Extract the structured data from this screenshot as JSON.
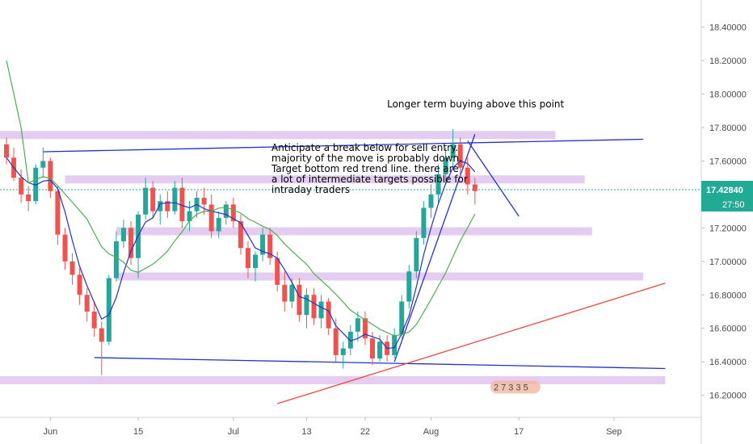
{
  "chart_data": {
    "type": "candlestick",
    "ylim": [
      16.15,
      18.48
    ],
    "x_ticks": [
      {
        "label": "Jun",
        "bar": 6
      },
      {
        "label": "15",
        "bar": 18
      },
      {
        "label": "Jul",
        "bar": 31
      },
      {
        "label": "13",
        "bar": 41
      },
      {
        "label": "22",
        "bar": 49
      },
      {
        "label": "Aug",
        "bar": 58
      },
      {
        "label": "17",
        "bar": 70
      },
      {
        "label": "Sep",
        "bar": 83
      }
    ],
    "y_ticks": [
      "18.40000",
      "18.20000",
      "18.00000",
      "17.80000",
      "17.60000",
      "17.40000",
      "17.20000",
      "17.00000",
      "16.80000",
      "16.60000",
      "16.40000",
      "16.20000"
    ],
    "y_tick_values": [
      18.4,
      18.2,
      18.0,
      17.8,
      17.6,
      17.4,
      17.2,
      17.0,
      16.8,
      16.6,
      16.4,
      16.2
    ],
    "ohlc": [
      [
        17.7,
        17.74,
        17.58,
        17.62
      ],
      [
        17.62,
        17.68,
        17.48,
        17.5
      ],
      [
        17.5,
        17.55,
        17.35,
        17.4
      ],
      [
        17.4,
        17.45,
        17.3,
        17.36
      ],
      [
        17.36,
        17.58,
        17.34,
        17.56
      ],
      [
        17.56,
        17.68,
        17.5,
        17.6
      ],
      [
        17.6,
        17.62,
        17.38,
        17.42
      ],
      [
        17.42,
        17.45,
        17.1,
        17.16
      ],
      [
        17.16,
        17.2,
        16.95,
        17.0
      ],
      [
        17.0,
        17.05,
        16.86,
        16.92
      ],
      [
        16.92,
        16.96,
        16.74,
        16.8
      ],
      [
        16.8,
        16.84,
        16.64,
        16.7
      ],
      [
        16.7,
        16.76,
        16.55,
        16.6
      ],
      [
        16.6,
        16.64,
        16.32,
        16.52
      ],
      [
        16.52,
        16.92,
        16.5,
        16.9
      ],
      [
        16.9,
        17.18,
        16.88,
        17.12
      ],
      [
        17.12,
        17.25,
        17.08,
        17.2
      ],
      [
        17.2,
        17.24,
        16.98,
        17.02
      ],
      [
        17.02,
        17.3,
        16.9,
        17.28
      ],
      [
        17.28,
        17.5,
        17.25,
        17.44
      ],
      [
        17.44,
        17.48,
        17.26,
        17.3
      ],
      [
        17.3,
        17.4,
        17.22,
        17.36
      ],
      [
        17.36,
        17.42,
        17.26,
        17.3
      ],
      [
        17.3,
        17.48,
        17.28,
        17.44
      ],
      [
        17.44,
        17.5,
        17.2,
        17.24
      ],
      [
        17.24,
        17.36,
        17.18,
        17.3
      ],
      [
        17.3,
        17.42,
        17.26,
        17.38
      ],
      [
        17.38,
        17.44,
        17.28,
        17.34
      ],
      [
        17.34,
        17.4,
        17.14,
        17.18
      ],
      [
        17.18,
        17.3,
        17.14,
        17.26
      ],
      [
        17.26,
        17.36,
        17.22,
        17.34
      ],
      [
        17.34,
        17.38,
        17.2,
        17.24
      ],
      [
        17.24,
        17.28,
        17.04,
        17.08
      ],
      [
        17.08,
        17.12,
        16.9,
        16.96
      ],
      [
        16.96,
        17.06,
        16.88,
        17.04
      ],
      [
        17.04,
        17.2,
        17.0,
        17.16
      ],
      [
        17.16,
        17.2,
        16.98,
        17.02
      ],
      [
        17.02,
        17.06,
        16.82,
        16.86
      ],
      [
        16.86,
        16.94,
        16.7,
        16.76
      ],
      [
        16.76,
        16.9,
        16.72,
        16.86
      ],
      [
        16.86,
        16.9,
        16.64,
        16.68
      ],
      [
        16.68,
        16.84,
        16.6,
        16.8
      ],
      [
        16.8,
        16.84,
        16.62,
        16.66
      ],
      [
        16.66,
        16.8,
        16.6,
        16.76
      ],
      [
        16.76,
        16.78,
        16.56,
        16.6
      ],
      [
        16.6,
        16.66,
        16.4,
        16.44
      ],
      [
        16.44,
        16.52,
        16.36,
        16.48
      ],
      [
        16.48,
        16.62,
        16.44,
        16.58
      ],
      [
        16.58,
        16.7,
        16.52,
        16.66
      ],
      [
        16.66,
        16.7,
        16.5,
        16.54
      ],
      [
        16.54,
        16.58,
        16.38,
        16.42
      ],
      [
        16.42,
        16.56,
        16.4,
        16.52
      ],
      [
        16.52,
        16.56,
        16.4,
        16.44
      ],
      [
        16.44,
        16.6,
        16.42,
        16.56
      ],
      [
        16.56,
        16.8,
        16.54,
        16.76
      ],
      [
        16.76,
        16.98,
        16.72,
        16.94
      ],
      [
        16.94,
        17.18,
        16.9,
        17.14
      ],
      [
        17.14,
        17.36,
        17.1,
        17.32
      ],
      [
        17.32,
        17.46,
        17.26,
        17.4
      ],
      [
        17.4,
        17.58,
        17.34,
        17.52
      ],
      [
        17.52,
        17.68,
        17.46,
        17.62
      ],
      [
        17.62,
        17.79,
        17.56,
        17.7
      ],
      [
        17.7,
        17.74,
        17.5,
        17.56
      ],
      [
        17.56,
        17.62,
        17.4,
        17.46
      ],
      [
        17.46,
        17.5,
        17.34,
        17.42
      ]
    ],
    "title": "",
    "xlabel": "",
    "ylabel": "",
    "price_label": "17.42840",
    "countdown_label": "27:50",
    "current_price": 17.4284,
    "horizontal_zones": [
      {
        "y": 17.755,
        "from_bar": -1,
        "to_bar": 75
      },
      {
        "y": 17.49,
        "from_bar": 8,
        "to_bar": 79
      },
      {
        "y": 17.18,
        "from_bar": 15,
        "to_bar": 80
      },
      {
        "y": 16.91,
        "from_bar": 15,
        "to_bar": 87
      },
      {
        "y": 16.29,
        "from_bar": -1,
        "to_bar": 90
      }
    ],
    "trend_lines": [
      {
        "color": "#2232c9",
        "from": [
          5,
          17.655
        ],
        "to": [
          87,
          17.73
        ]
      },
      {
        "color": "#2232c9",
        "from": [
          12,
          16.425
        ],
        "to": [
          90,
          16.36
        ]
      },
      {
        "color": "#f0473c",
        "from": [
          37,
          16.15
        ],
        "to": [
          90,
          16.87
        ]
      },
      {
        "color": "#2232c9",
        "from": [
          53,
          16.4
        ],
        "to": [
          64,
          17.76
        ]
      },
      {
        "color": "#2232c9",
        "from": [
          63,
          17.72
        ],
        "to": [
          70,
          17.27
        ]
      }
    ],
    "annotations": [
      {
        "text": "Longer term buying above this point",
        "bar": 52,
        "y": 17.92
      },
      {
        "lines": [
          "Anticipate a break below for sell entry.",
          "majority of the move is probably down.",
          "Target bottom red trend line. there are",
          "a lot of intermediate targets possible for",
          "intraday traders"
        ],
        "bar": 34,
        "y": 17.66
      }
    ],
    "event_badge": "2 7 3 3 5",
    "colors": {
      "up": "#26a69a",
      "down": "#ef5350",
      "zone": "#e1c4ef",
      "ma_fast": "#2232c9",
      "ma_slow": "#4caf50",
      "price_bg": "#22ab94",
      "countdown_bg": "#22ab94"
    }
  }
}
